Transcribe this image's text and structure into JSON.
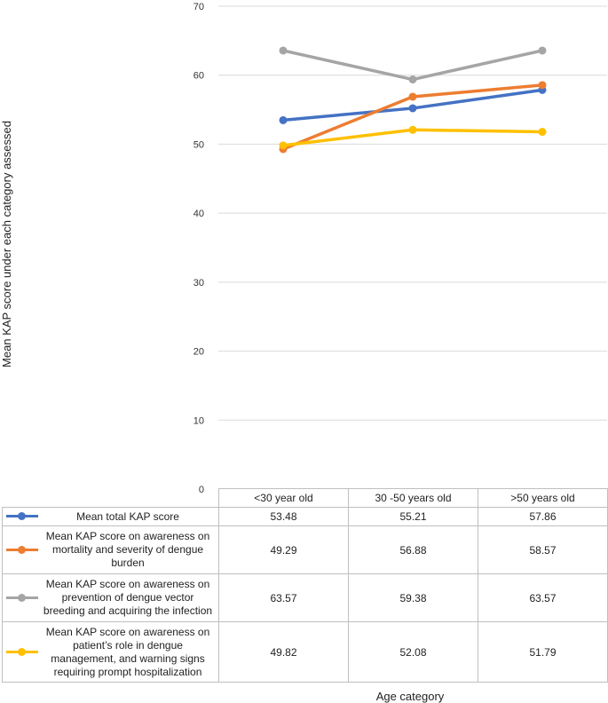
{
  "chart_data": {
    "type": "line",
    "title": "",
    "xlabel": "Age category",
    "ylabel": "Mean KAP score under each category assessed",
    "ylim": [
      0,
      70
    ],
    "yticks": [
      0,
      10,
      20,
      30,
      40,
      50,
      60,
      70
    ],
    "grid": true,
    "categories": [
      "<30 year old",
      "30 -50 years old",
      ">50 years old"
    ],
    "series": [
      {
        "name": "Mean total KAP score",
        "legend_lines": [
          "Mean total KAP score"
        ],
        "color": "#4472C4",
        "values": [
          53.48,
          55.21,
          57.86
        ],
        "labels": [
          "53.48",
          "55.21",
          "57.86"
        ]
      },
      {
        "name": "Mean KAP score on awareness on mortality and severity of dengue burden",
        "legend_lines": [
          "Mean KAP score on awareness on",
          "mortality and severity of dengue",
          "burden"
        ],
        "color": "#ED7D31",
        "values": [
          49.29,
          56.88,
          58.57
        ],
        "labels": [
          "49.29",
          "56.88",
          "58.57"
        ]
      },
      {
        "name": "Mean KAP score on awareness on prevention of dengue vector breeding and acquiring the infection",
        "legend_lines": [
          "Mean KAP score on awareness on",
          "prevention of dengue vector",
          "breeding and acquiring the infection"
        ],
        "color": "#A5A5A5",
        "values": [
          63.57,
          59.38,
          63.57
        ],
        "labels": [
          "63.57",
          "59.38",
          "63.57"
        ]
      },
      {
        "name": "Mean KAP score on awareness on patient’s role in dengue management, and warning signs requiring prompt hospitalization",
        "legend_lines": [
          "Mean KAP score on awareness on",
          "patient’s role in dengue",
          "management, and warning signs",
          "requiring prompt hospitalization"
        ],
        "color": "#FFC000",
        "values": [
          49.82,
          52.08,
          51.79
        ],
        "labels": [
          "49.82",
          "52.08",
          "51.79"
        ]
      }
    ]
  }
}
